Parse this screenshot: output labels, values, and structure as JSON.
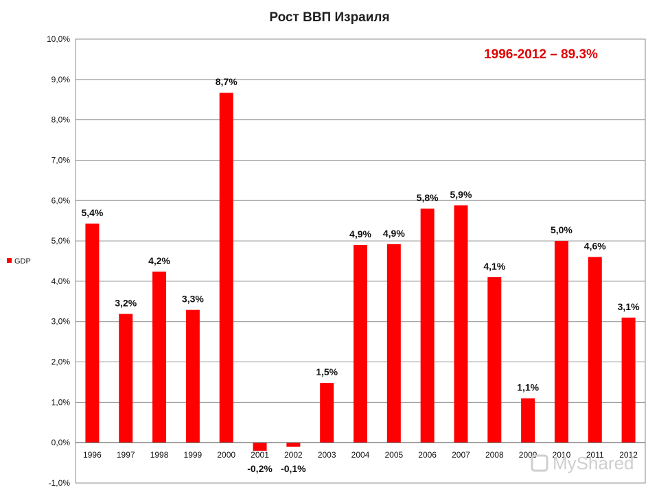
{
  "chart_data": {
    "type": "bar",
    "title": "Рост ВВП Израиля",
    "categories": [
      "1996",
      "1997",
      "1998",
      "1999",
      "2000",
      "2001",
      "2002",
      "2003",
      "2004",
      "2005",
      "2006",
      "2007",
      "2008",
      "2009",
      "2010",
      "2011",
      "2012"
    ],
    "series": [
      {
        "name": "GDP",
        "color": "#ff0000",
        "values": [
          5.43,
          3.19,
          4.24,
          3.29,
          8.67,
          -0.2,
          -0.1,
          1.48,
          4.9,
          4.92,
          5.8,
          5.88,
          4.1,
          1.1,
          5.0,
          4.6,
          3.1
        ],
        "labels": [
          "5,4%",
          "3,2%",
          "4,2%",
          "3,3%",
          "8,7%",
          "-0,2%",
          "-0,1%",
          "1,5%",
          "4,9%",
          "4,9%",
          "5,8%",
          "5,9%",
          "4,1%",
          "1,1%",
          "5,0%",
          "4,6%",
          "3,1%"
        ]
      }
    ],
    "ylim": [
      -1.0,
      10.0
    ],
    "y_ticks": [
      -1.0,
      0.0,
      1.0,
      2.0,
      3.0,
      4.0,
      5.0,
      6.0,
      7.0,
      8.0,
      9.0,
      10.0
    ],
    "y_tick_labels": [
      "-1,0%",
      "0,0%",
      "1,0%",
      "2,0%",
      "3,0%",
      "4,0%",
      "5,0%",
      "6,0%",
      "7,0%",
      "8,0%",
      "9,0%",
      "10,0%"
    ],
    "grid": true,
    "legend": "left",
    "annotation": {
      "text": "1996-2012 – 89.3%",
      "color": "#e00000"
    },
    "xlabel": "",
    "ylabel": ""
  },
  "watermark": "MyShared"
}
